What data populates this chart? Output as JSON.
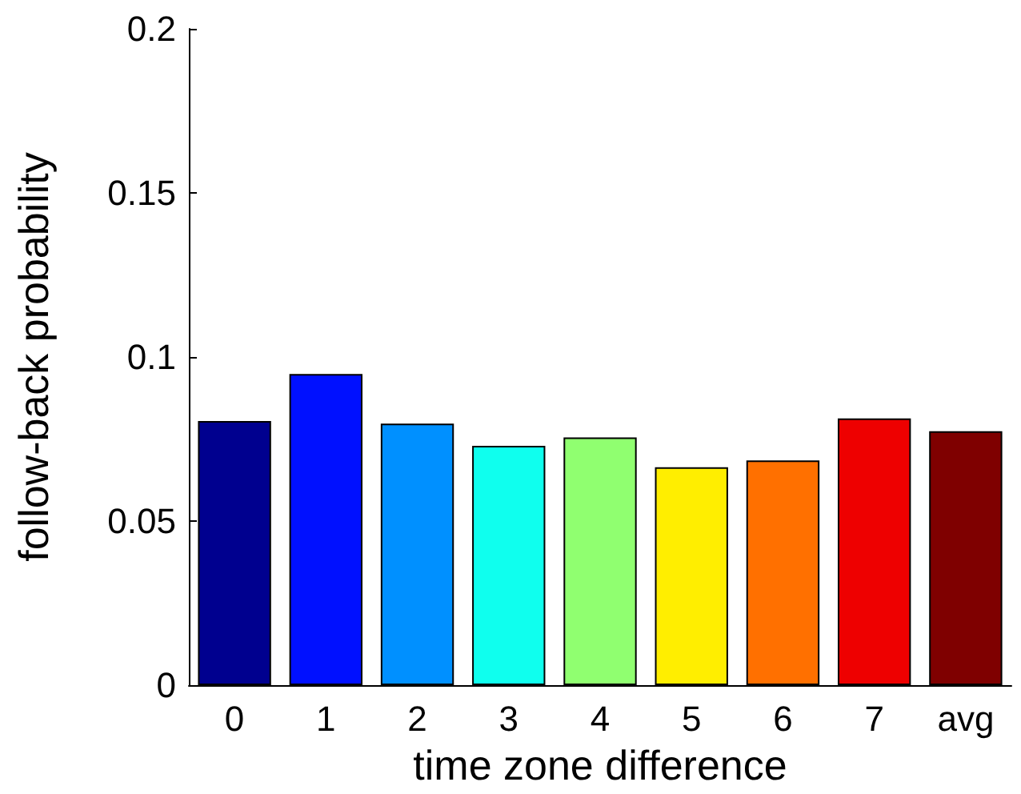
{
  "chart_data": {
    "type": "bar",
    "xlabel": "time zone difference",
    "ylabel": "follow-back probability",
    "categories": [
      "0",
      "1",
      "2",
      "3",
      "4",
      "5",
      "6",
      "7",
      "avg"
    ],
    "values": [
      0.0805,
      0.0948,
      0.0797,
      0.0729,
      0.0755,
      0.0664,
      0.0685,
      0.0813,
      0.0774
    ],
    "colors": [
      "#00008f",
      "#0010ff",
      "#0090ff",
      "#0fffee",
      "#90ff70",
      "#ffee00",
      "#ff7000",
      "#ee0000",
      "#7f0000"
    ],
    "ylim": [
      0,
      0.2
    ],
    "yticks": [
      0,
      0.05,
      0.1,
      0.15,
      0.2
    ]
  }
}
